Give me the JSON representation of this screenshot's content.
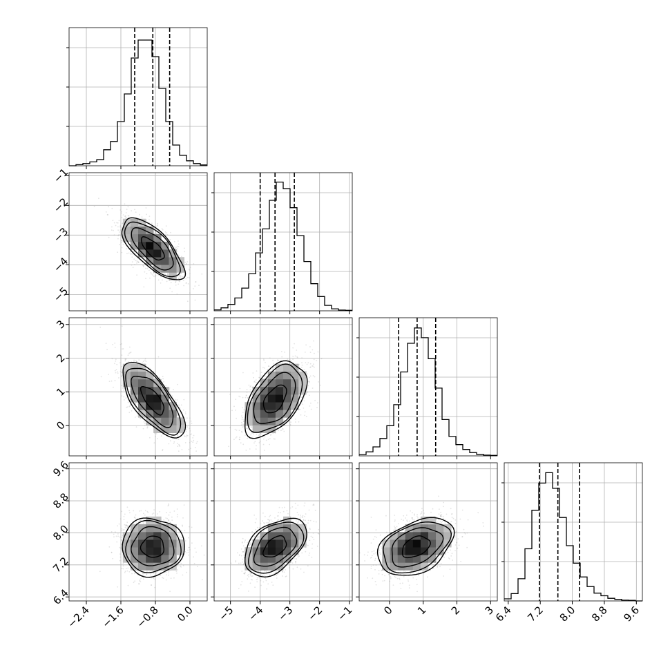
{
  "chart_data": {
    "type": "corner",
    "parameters": 4,
    "grid": true,
    "quantiles": [
      0.16,
      0.5,
      0.84
    ],
    "colors": {
      "line": "#000000",
      "grid": "#b0b0b0",
      "samples": "#9a9a9a"
    },
    "ranges": [
      [
        -2.8,
        0.4
      ],
      [
        -5.55,
        -0.9
      ],
      [
        -0.9,
        3.2
      ],
      [
        6.3,
        9.75
      ]
    ],
    "ticks": [
      [
        "-2.4",
        "-1.6",
        "-0.8",
        "0.0"
      ],
      [
        "-5",
        "-4",
        "-3",
        "-2",
        "-1"
      ],
      [
        "0",
        "1",
        "2",
        "3"
      ],
      [
        "6.4",
        "7.2",
        "8.0",
        "8.8",
        "9.6"
      ]
    ],
    "marginals": [
      {
        "param": 0,
        "bin_start": -2.8,
        "bin_width": 0.16,
        "counts": [
          0,
          4,
          8,
          14,
          22,
          58,
          88,
          160,
          260,
          390,
          455,
          455,
          395,
          280,
          160,
          75,
          38,
          18,
          8,
          3
        ],
        "ymax": 500,
        "quantile_values": [
          -1.28,
          -0.86,
          -0.47
        ]
      },
      {
        "param": 1,
        "bin_start": -5.55,
        "bin_width": 0.2325,
        "counts": [
          4,
          12,
          26,
          52,
          92,
          150,
          235,
          332,
          448,
          522,
          495,
          418,
          305,
          200,
          110,
          58,
          22,
          8,
          3,
          2
        ],
        "ymax": 560,
        "quantile_values": [
          -4.0,
          -3.5,
          -2.85
        ]
      },
      {
        "param": 2,
        "bin_start": -0.9,
        "bin_width": 0.205,
        "counts": [
          5,
          16,
          35,
          68,
          118,
          200,
          328,
          440,
          500,
          462,
          380,
          265,
          142,
          76,
          44,
          25,
          13,
          6,
          3,
          2
        ],
        "ymax": 540,
        "quantile_values": [
          0.27,
          0.82,
          1.37
        ]
      },
      {
        "param": 3,
        "bin_start": 6.3,
        "bin_width": 0.1725,
        "counts": [
          8,
          28,
          85,
          200,
          348,
          452,
          492,
          432,
          320,
          212,
          145,
          92,
          55,
          30,
          20,
          10,
          6,
          3,
          2,
          0
        ],
        "ymax": 530,
        "quantile_values": [
          7.18,
          7.64,
          8.18
        ]
      }
    ],
    "pairs": [
      {
        "x_param": 0,
        "y_param": 1,
        "center": [
          -0.86,
          -3.46
        ],
        "sigma": [
          0.36,
          0.52
        ],
        "correlation": -0.7
      },
      {
        "x_param": 0,
        "y_param": 2,
        "center": [
          -0.86,
          0.75
        ],
        "sigma": [
          0.36,
          0.56
        ],
        "correlation": -0.7
      },
      {
        "x_param": 1,
        "y_param": 2,
        "center": [
          -3.5,
          0.78
        ],
        "sigma": [
          0.52,
          0.56
        ],
        "correlation": 0.5
      },
      {
        "x_param": 0,
        "y_param": 3,
        "center": [
          -0.86,
          7.65
        ],
        "sigma": [
          0.36,
          0.36
        ],
        "correlation": 0.0
      },
      {
        "x_param": 1,
        "y_param": 3,
        "center": [
          -3.5,
          7.65
        ],
        "sigma": [
          0.52,
          0.36
        ],
        "correlation": 0.45
      },
      {
        "x_param": 2,
        "y_param": 3,
        "center": [
          0.78,
          7.65
        ],
        "sigma": [
          0.56,
          0.36
        ],
        "correlation": 0.38
      }
    ],
    "contour_levels_sigma": [
      0.5,
      1.0,
      1.5,
      2.0
    ]
  }
}
